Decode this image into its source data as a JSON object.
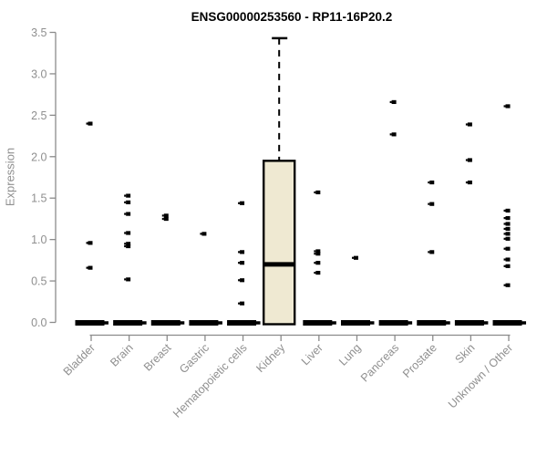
{
  "chart_data": {
    "type": "boxplot",
    "title": "ENSG00000253560 - RP11-16P20.2",
    "xlabel": "",
    "ylabel": "Expression",
    "ylim": [
      0,
      3.5
    ],
    "yticks": [
      0.0,
      0.5,
      1.0,
      1.5,
      2.0,
      2.5,
      3.0,
      3.5
    ],
    "ytick_labels": [
      "0.0",
      "0.5",
      "1.0",
      "1.5",
      "2.0",
      "2.5",
      "3.0",
      "3.5"
    ],
    "grid": "off",
    "legend": "none",
    "categories": [
      "Bladder",
      "Brain",
      "Breast",
      "Gastric",
      "Hematopoietic cells",
      "Kidney",
      "Liver",
      "Lung",
      "Pancreas",
      "Prostate",
      "Skin",
      "Unknown / Other"
    ],
    "series": [
      {
        "category": "Bladder",
        "box": {
          "median": 0,
          "q1": 0,
          "q3": 0,
          "whisker_high": null
        },
        "points": [
          2.4,
          0.96,
          0.66
        ]
      },
      {
        "category": "Brain",
        "box": {
          "median": 0,
          "q1": 0,
          "q3": 0,
          "whisker_high": null
        },
        "points": [
          1.53,
          1.45,
          1.31,
          1.08,
          0.95,
          0.92,
          0.52
        ]
      },
      {
        "category": "Breast",
        "box": {
          "median": 0,
          "q1": 0,
          "q3": 0,
          "whisker_high": null
        },
        "points": [
          1.29,
          1.25
        ]
      },
      {
        "category": "Gastric",
        "box": {
          "median": 0,
          "q1": 0,
          "q3": 0,
          "whisker_high": null
        },
        "points": [
          1.07
        ]
      },
      {
        "category": "Hematopoietic cells",
        "box": {
          "median": 0,
          "q1": 0,
          "q3": 0,
          "whisker_high": null
        },
        "points": [
          1.44,
          0.85,
          0.72,
          0.51,
          0.23
        ]
      },
      {
        "category": "Kidney",
        "box": {
          "median": 0.7,
          "q1": 0,
          "q3": 1.95,
          "whisker_high": 3.43
        },
        "points": []
      },
      {
        "category": "Liver",
        "box": {
          "median": 0,
          "q1": 0,
          "q3": 0,
          "whisker_high": null
        },
        "points": [
          1.57,
          0.86,
          0.83,
          0.72,
          0.6
        ]
      },
      {
        "category": "Lung",
        "box": {
          "median": 0,
          "q1": 0,
          "q3": 0,
          "whisker_high": null
        },
        "points": [
          0.78
        ]
      },
      {
        "category": "Pancreas",
        "box": {
          "median": 0,
          "q1": 0,
          "q3": 0,
          "whisker_high": null
        },
        "points": [
          2.66,
          2.27
        ]
      },
      {
        "category": "Prostate",
        "box": {
          "median": 0,
          "q1": 0,
          "q3": 0,
          "whisker_high": null
        },
        "points": [
          1.69,
          1.43,
          0.85
        ]
      },
      {
        "category": "Skin",
        "box": {
          "median": 0,
          "q1": 0,
          "q3": 0,
          "whisker_high": null
        },
        "points": [
          2.39,
          1.96,
          1.69
        ]
      },
      {
        "category": "Unknown / Other",
        "box": {
          "median": 0,
          "q1": 0,
          "q3": 0,
          "whisker_high": null
        },
        "points": [
          2.61,
          1.35,
          1.26,
          1.19,
          1.13,
          1.07,
          1.01,
          0.89,
          0.76,
          0.68,
          0.45
        ]
      }
    ],
    "colors": {
      "box_fill": "#EFE9D2",
      "box_border": "#000000",
      "point": "#000000",
      "zero_bar": "#000000",
      "axis_line": "#8b8b8b",
      "axis_text": "#8f8f8f",
      "title_text": "#000000",
      "background": "#ffffff"
    }
  }
}
